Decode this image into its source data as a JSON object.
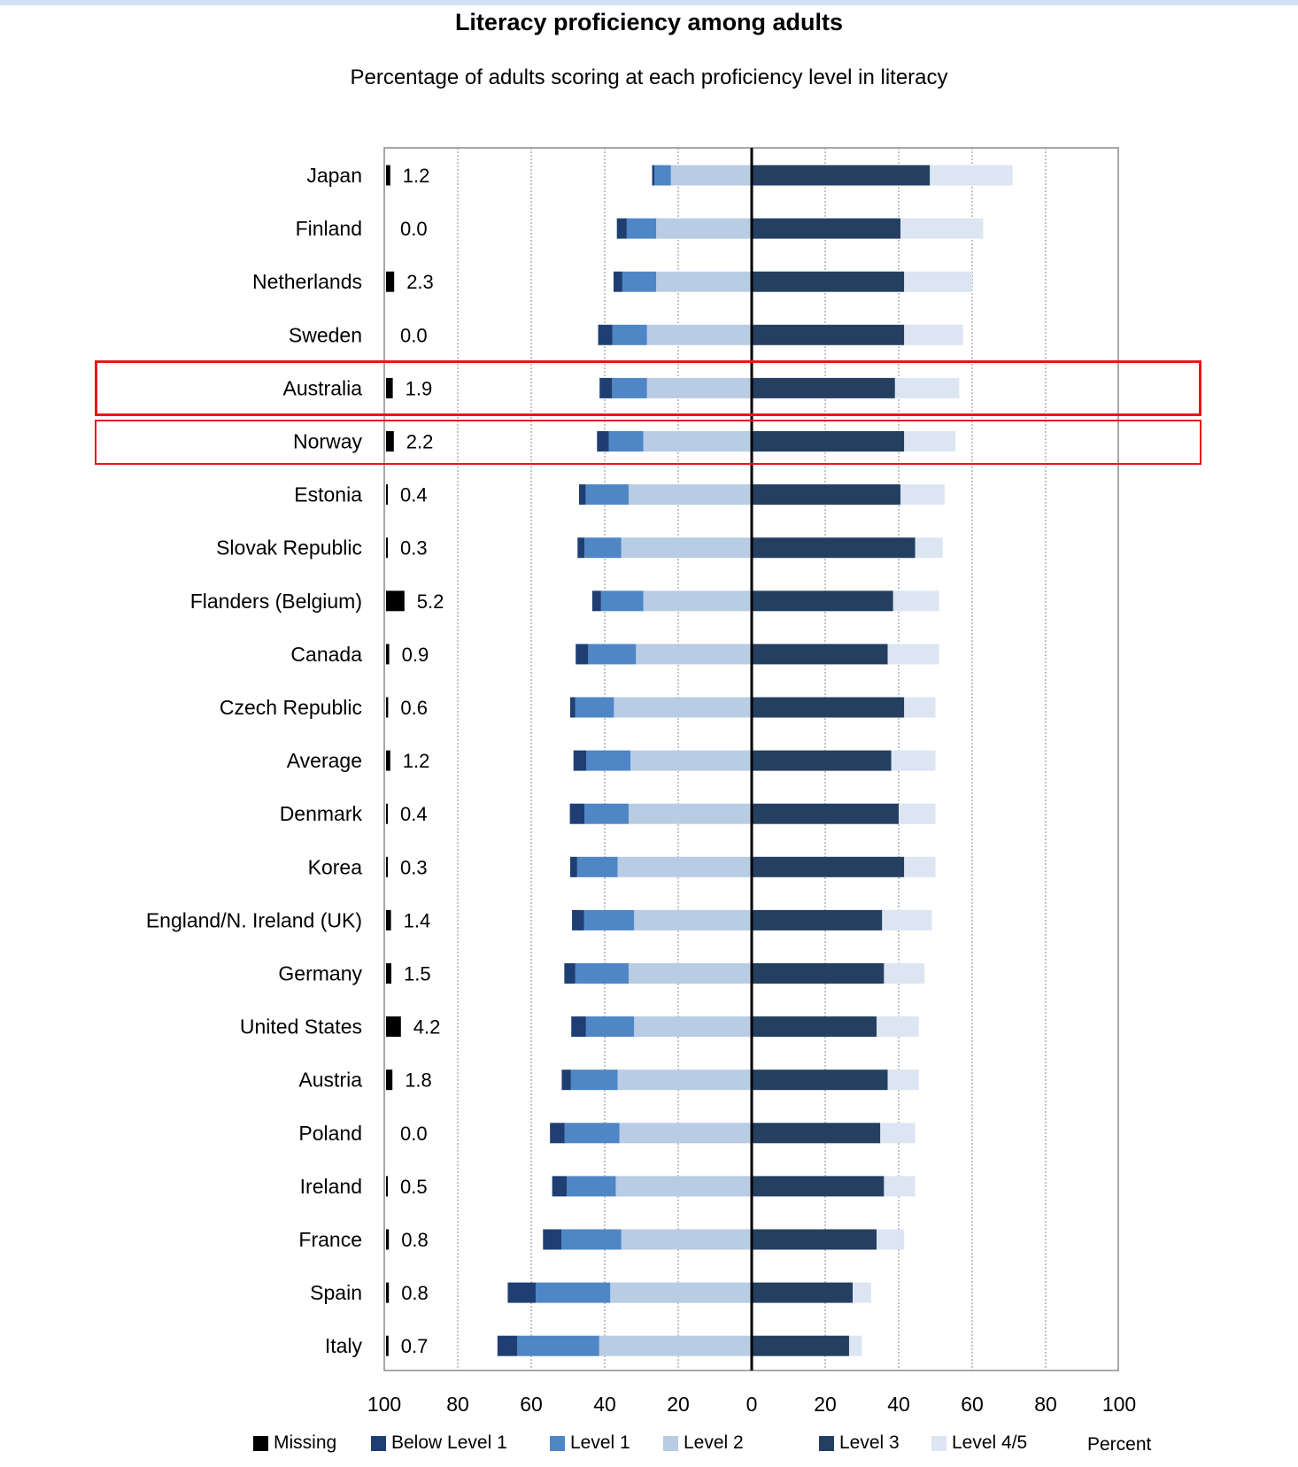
{
  "chart_data": {
    "type": "bar",
    "title": "Literacy proficiency among adults",
    "subtitle": "Percentage of adults scoring at each proficiency level in literacy",
    "xlabel": "Percent",
    "xlim": [
      -100,
      100
    ],
    "x_ticks": [
      "100",
      "80",
      "60",
      "40",
      "20",
      "0",
      "20",
      "40",
      "60",
      "80",
      "100"
    ],
    "legend": [
      {
        "name": "Missing",
        "color": "#000000"
      },
      {
        "name": "Below Level 1",
        "color": "#1f3f73"
      },
      {
        "name": "Level 1",
        "color": "#4f86c6"
      },
      {
        "name": "Level 2",
        "color": "#b8cce4"
      },
      {
        "name": "Level 3",
        "color": "#243f60"
      },
      {
        "name": "Level 4/5",
        "color": "#dce6f2"
      }
    ],
    "legend_placement": "bottom",
    "grid": true,
    "highlighted": [
      "Australia",
      "Norway"
    ],
    "countries": [
      "Japan",
      "Finland",
      "Netherlands",
      "Sweden",
      "Australia",
      "Norway",
      "Estonia",
      "Slovak Republic",
      "Flanders (Belgium)",
      "Canada",
      "Czech Republic",
      "Average",
      "Denmark",
      "Korea",
      "England/N. Ireland (UK)",
      "Germany",
      "United States",
      "Austria",
      "Poland",
      "Ireland",
      "France",
      "Spain",
      "Italy"
    ],
    "missing": [
      "1.2",
      "0.0",
      "2.3",
      "0.0",
      "1.9",
      "2.2",
      "0.4",
      "0.3",
      "5.2",
      "0.9",
      "0.6",
      "1.2",
      "0.4",
      "0.3",
      "1.4",
      "1.5",
      "4.2",
      "1.8",
      "0.0",
      "0.5",
      "0.8",
      "0.8",
      "0.7"
    ],
    "series": [
      {
        "name": "Below Level 1",
        "values": [
          0.6,
          2.7,
          2.4,
          3.9,
          3.4,
          3.2,
          1.8,
          1.9,
          2.4,
          3.4,
          1.4,
          3.5,
          4.0,
          1.9,
          3.3,
          3.0,
          4.0,
          2.5,
          4.0,
          4.0,
          5.0,
          7.6,
          5.4
        ]
      },
      {
        "name": "Level 1",
        "values": [
          4.5,
          8.0,
          9.2,
          9.4,
          9.5,
          9.4,
          11.7,
          10.0,
          11.5,
          13.0,
          10.5,
          12.0,
          12.0,
          11.0,
          13.6,
          14.5,
          13.1,
          12.7,
          14.9,
          13.3,
          16.3,
          20.3,
          22.3
        ]
      },
      {
        "name": "Level 2",
        "values": [
          22.0,
          26.0,
          26.0,
          28.5,
          28.5,
          29.5,
          33.5,
          35.5,
          29.5,
          31.5,
          37.5,
          33.0,
          33.5,
          36.5,
          32.0,
          33.5,
          32.0,
          36.5,
          36.0,
          37.0,
          35.5,
          38.5,
          41.5
        ]
      },
      {
        "name": "Level 3",
        "values": [
          48.5,
          40.5,
          41.5,
          41.5,
          39.0,
          41.5,
          40.5,
          44.5,
          38.5,
          37.0,
          41.5,
          38.0,
          40.0,
          41.5,
          35.5,
          36.0,
          34.0,
          37.0,
          35.0,
          36.0,
          34.0,
          27.5,
          26.5
        ]
      },
      {
        "name": "Level 4/5",
        "values": [
          22.5,
          22.5,
          18.5,
          16.0,
          17.5,
          14.0,
          12.0,
          7.5,
          12.5,
          14.0,
          8.5,
          12.0,
          10.0,
          8.5,
          13.5,
          11.0,
          11.5,
          8.5,
          9.5,
          8.5,
          7.5,
          5.0,
          3.5
        ]
      }
    ]
  }
}
